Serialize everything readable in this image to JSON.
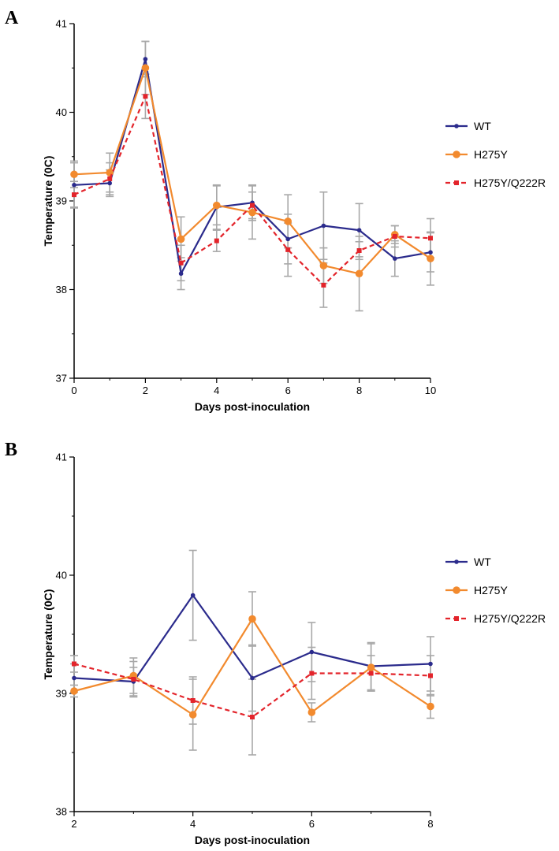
{
  "chart_data": [
    {
      "type": "line",
      "panel_label": "A",
      "xlabel": "Days post-inoculation",
      "ylabel": "Temperature (0C)",
      "xlim": [
        0,
        10
      ],
      "ylim": [
        37,
        41
      ],
      "xticks": [
        0,
        2,
        4,
        6,
        8,
        10
      ],
      "yticks": [
        37,
        38,
        39,
        40,
        41
      ],
      "legend_position": "right",
      "grid": false,
      "x": [
        0,
        1,
        2,
        3,
        4,
        5,
        6,
        7,
        8,
        9,
        10
      ],
      "series": [
        {
          "name": "WT",
          "color": "#2b2b8c",
          "style": "solid",
          "marker": "small-circle",
          "values": [
            39.18,
            39.2,
            40.6,
            38.18,
            38.93,
            38.98,
            38.57,
            38.72,
            38.67,
            38.35,
            38.42
          ],
          "errors": [
            0.25,
            0.15,
            0.2,
            0.18,
            0.25,
            0.2,
            0.28,
            0.38,
            0.3,
            0.2,
            0.22
          ]
        },
        {
          "name": "H275Y",
          "color": "#f28a2e",
          "style": "solid",
          "marker": "large-circle",
          "values": [
            39.3,
            39.32,
            40.5,
            38.57,
            38.95,
            38.87,
            38.77,
            38.27,
            38.18,
            38.62,
            38.35
          ],
          "errors": [
            0.15,
            0.22,
            0.3,
            0.25,
            0.22,
            0.3,
            0.3,
            0.2,
            0.42,
            0.1,
            0.3
          ]
        },
        {
          "name": "H275Y/Q222R",
          "color": "#e3242b",
          "style": "dashed",
          "marker": "square",
          "values": [
            39.07,
            39.25,
            40.18,
            38.3,
            38.55,
            38.95,
            38.45,
            38.05,
            38.44,
            38.6,
            38.58
          ],
          "errors": [
            0.15,
            0.18,
            0.25,
            0.2,
            0.12,
            0.15,
            0.3,
            0.25,
            0.1,
            0.12,
            0.22
          ]
        }
      ]
    },
    {
      "type": "line",
      "panel_label": "B",
      "xlabel": "Days post-inoculation",
      "ylabel": "Temperature (0C)",
      "xlim": [
        2,
        8
      ],
      "ylim": [
        38,
        41
      ],
      "xticks": [
        2,
        4,
        6,
        8
      ],
      "yticks": [
        38,
        39,
        40,
        41
      ],
      "legend_position": "right",
      "grid": false,
      "x": [
        2,
        3,
        4,
        5,
        6,
        7,
        8
      ],
      "series": [
        {
          "name": "WT",
          "color": "#2b2b8c",
          "style": "solid",
          "marker": "small-circle",
          "values": [
            39.13,
            39.1,
            39.83,
            39.13,
            39.35,
            39.23,
            39.25
          ],
          "errors": [
            0.12,
            0.12,
            0.38,
            0.28,
            0.25,
            0.2,
            0.23
          ]
        },
        {
          "name": "H275Y",
          "color": "#f28a2e",
          "style": "solid",
          "marker": "large-circle",
          "values": [
            39.02,
            39.15,
            38.82,
            39.63,
            38.84,
            39.22,
            38.89
          ],
          "errors": [
            0.05,
            0.15,
            0.3,
            0.23,
            0.08,
            0.2,
            0.1
          ]
        },
        {
          "name": "H275Y/Q222R",
          "color": "#e3242b",
          "style": "dashed",
          "marker": "square",
          "values": [
            39.25,
            39.12,
            38.94,
            38.8,
            39.17,
            39.17,
            39.15
          ],
          "errors": [
            0.07,
            0.15,
            0.2,
            0.32,
            0.22,
            0.15,
            0.17
          ]
        }
      ]
    }
  ]
}
